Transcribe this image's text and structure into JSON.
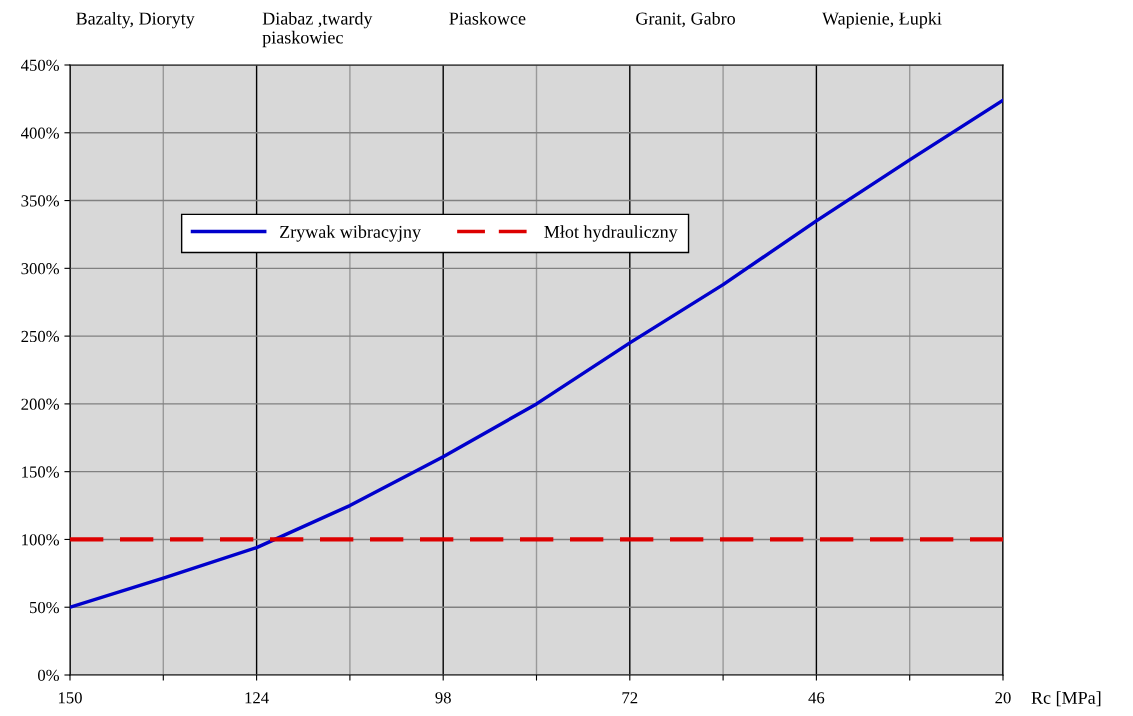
{
  "chart_data": {
    "type": "line",
    "xlabel": "Rc [MPa]",
    "x": [
      150,
      137,
      124,
      111,
      98,
      85,
      72,
      59,
      46,
      33,
      20
    ],
    "series": [
      {
        "name": "Zrywak wibracyjny",
        "color": "#0000cc",
        "line_style": "solid",
        "values": [
          50,
          71.5,
          94,
          125,
          161,
          200,
          245,
          288,
          335,
          380,
          424
        ]
      },
      {
        "name": "Młot hydrauliczny",
        "color": "#dd0000",
        "line_style": "dashed",
        "values": [
          100,
          100,
          100,
          100,
          100,
          100,
          100,
          100,
          100,
          100,
          100
        ]
      }
    ],
    "xlim": [
      150,
      20
    ],
    "xticks": [
      150,
      {
        "value": 137,
        "label": null
      },
      124,
      {
        "value": 111,
        "label": null
      },
      98,
      {
        "value": 85,
        "label": null
      },
      72,
      {
        "value": 59,
        "label": null
      },
      46,
      {
        "value": 33,
        "label": null
      },
      20
    ],
    "ylim": [
      0,
      450
    ],
    "yticks": [
      {
        "value": 0,
        "label": "0%"
      },
      {
        "value": 50,
        "label": "50%"
      },
      {
        "value": 100,
        "label": "100%"
      },
      {
        "value": 150,
        "label": "150%"
      },
      {
        "value": 200,
        "label": "200%"
      },
      {
        "value": 250,
        "label": "250%"
      },
      {
        "value": 300,
        "label": "300%"
      },
      {
        "value": 350,
        "label": "350%"
      },
      {
        "value": 400,
        "label": "400%"
      },
      {
        "value": 450,
        "label": "450%"
      }
    ],
    "annotations": [
      "Bazalty, Dioryty",
      "Diabaz ,twardy\npiaskowiec",
      "Piaskowce",
      "Granit, Gabro",
      "Wapienie, Łupki"
    ],
    "grid": true,
    "legend": "top left",
    "marker": "none"
  }
}
